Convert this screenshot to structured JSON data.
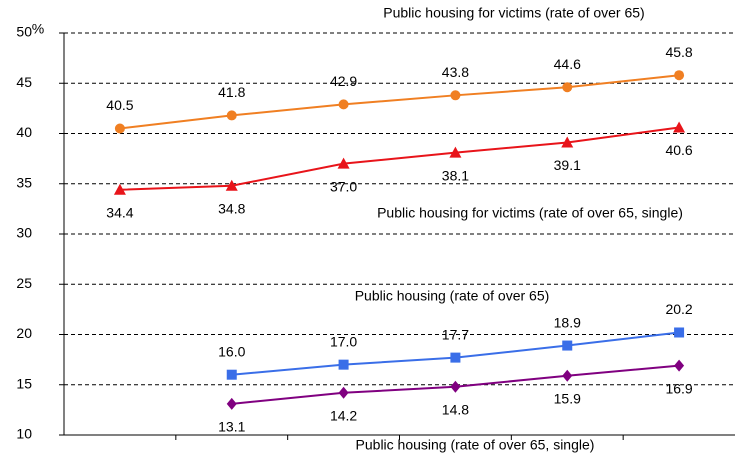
{
  "chart_data": {
    "type": "line",
    "ylabel": "%",
    "categories": [
      null,
      null,
      null,
      null,
      null,
      null
    ],
    "ylim": [
      10,
      50
    ],
    "yticks": [
      10,
      15,
      20,
      25,
      30,
      35,
      40,
      45,
      50
    ],
    "grid": true,
    "series": [
      {
        "name": "Public housing for victims (rate of over 65)",
        "color": "#f07f22",
        "marker": "circle",
        "values": [
          40.5,
          41.8,
          42.9,
          43.8,
          44.6,
          45.8
        ],
        "value_labels": [
          "40.5",
          "41.8",
          "42.9",
          "43.8",
          "44.6",
          "45.8"
        ]
      },
      {
        "name": "Public housing for victims (rate of over 65, single)",
        "color": "#e8141a",
        "marker": "triangle",
        "values": [
          34.4,
          34.8,
          37.0,
          38.1,
          39.1,
          40.6
        ],
        "value_labels": [
          "34.4",
          "34.8",
          "37.0",
          "38.1",
          "39.1",
          "40.6"
        ]
      },
      {
        "name": "Public housing (rate of over 65)",
        "color": "#3a6ee8",
        "marker": "square",
        "values": [
          null,
          16.0,
          17.0,
          17.7,
          18.9,
          20.2
        ],
        "value_labels": [
          null,
          "16.0",
          "17.0",
          "17.7",
          "18.9",
          "20.2"
        ]
      },
      {
        "name": "Public housing (rate of over 65, single)",
        "color": "#800080",
        "marker": "diamond",
        "values": [
          null,
          13.1,
          14.2,
          14.8,
          15.9,
          16.9
        ],
        "value_labels": [
          null,
          "13.1",
          "14.2",
          "14.8",
          "15.9",
          "16.9"
        ]
      }
    ]
  }
}
